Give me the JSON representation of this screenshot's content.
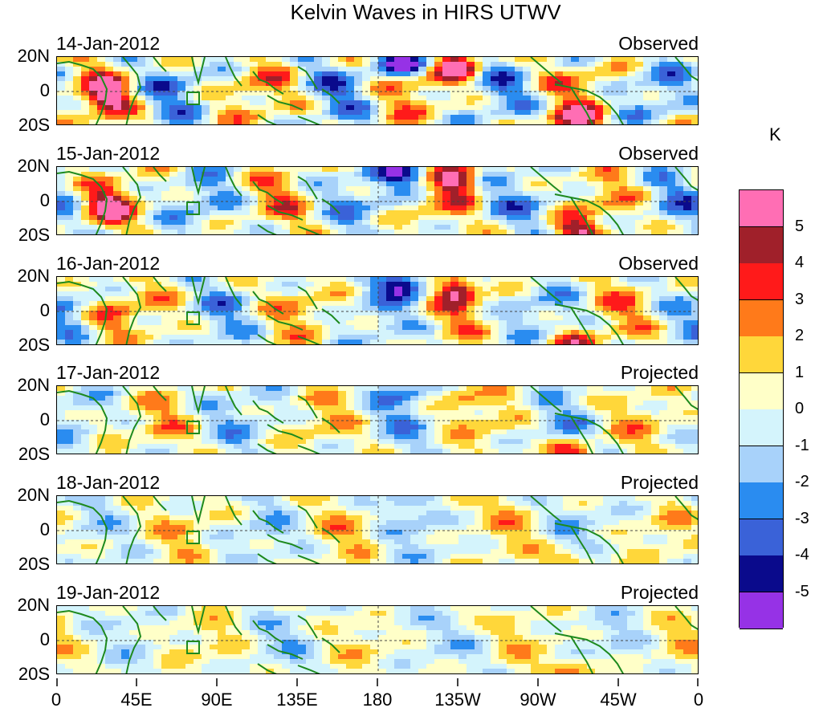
{
  "title": "Kelvin Waves in HIRS UTWV",
  "panels": [
    {
      "date": "14-Jan-2012",
      "status": "Observed"
    },
    {
      "date": "15-Jan-2012",
      "status": "Observed"
    },
    {
      "date": "16-Jan-2012",
      "status": "Observed"
    },
    {
      "date": "17-Jan-2012",
      "status": "Projected"
    },
    {
      "date": "18-Jan-2012",
      "status": "Projected"
    },
    {
      "date": "19-Jan-2012",
      "status": "Projected"
    }
  ],
  "lat_labels": [
    "20N",
    "0",
    "20S"
  ],
  "lon_labels": [
    "0",
    "45E",
    "90E",
    "135E",
    "180",
    "135W",
    "90W",
    "45W",
    "0"
  ],
  "colorbar": {
    "units": "K",
    "labels": [
      "5",
      "4",
      "3",
      "2",
      "1",
      "0",
      "-1",
      "-2",
      "-3",
      "-4",
      "-5"
    ],
    "colors": [
      "#ff6eb4",
      "#a0202a",
      "#ff1a1a",
      "#ff7a1a",
      "#ffd73a",
      "#ffffc8",
      "#d4f4fc",
      "#a8d2fa",
      "#2a8cf0",
      "#3a62d8",
      "#0a0a8c",
      "#9632e6"
    ]
  },
  "coast_color": "#1e8a1e"
}
